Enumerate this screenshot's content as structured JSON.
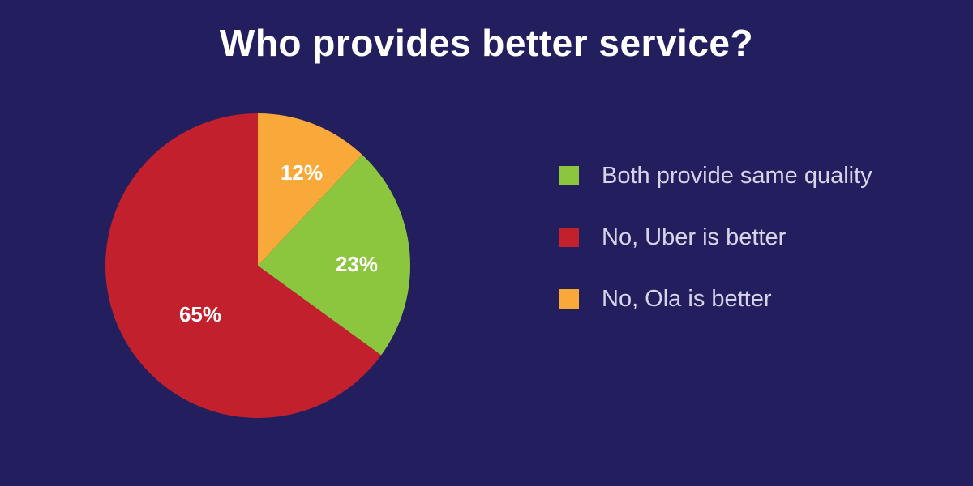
{
  "title": "Who provides better service?",
  "background_color": "#231f5f",
  "legend": {
    "items": [
      {
        "label": "Both provide same quality",
        "color": "#8cc63f"
      },
      {
        "label": "No, Uber is better",
        "color": "#c1202c"
      },
      {
        "label": "No, Ola is better",
        "color": "#f9a93a"
      }
    ]
  },
  "slices": [
    {
      "label": "12%",
      "value": 12,
      "color": "#f9a93a",
      "category": "No, Ola is better"
    },
    {
      "label": "23%",
      "value": 23,
      "color": "#8cc63f",
      "category": "Both provide same quality"
    },
    {
      "label": "65%",
      "value": 65,
      "color": "#c1202c",
      "category": "No, Uber is better"
    }
  ],
  "chart_data": {
    "type": "pie",
    "title": "Who provides better service?",
    "categories": [
      "No, Ola is better",
      "Both provide same quality",
      "No, Uber is better"
    ],
    "values": [
      12,
      23,
      65
    ],
    "unit": "%",
    "colors": [
      "#f9a93a",
      "#8cc63f",
      "#c1202c"
    ],
    "start_angle": "12 o'clock, clockwise",
    "legend": {
      "position": "right",
      "entries": [
        "Both provide same quality",
        "No, Uber is better",
        "No, Ola is better"
      ]
    },
    "data_labels": [
      "12%",
      "23%",
      "65%"
    ]
  }
}
